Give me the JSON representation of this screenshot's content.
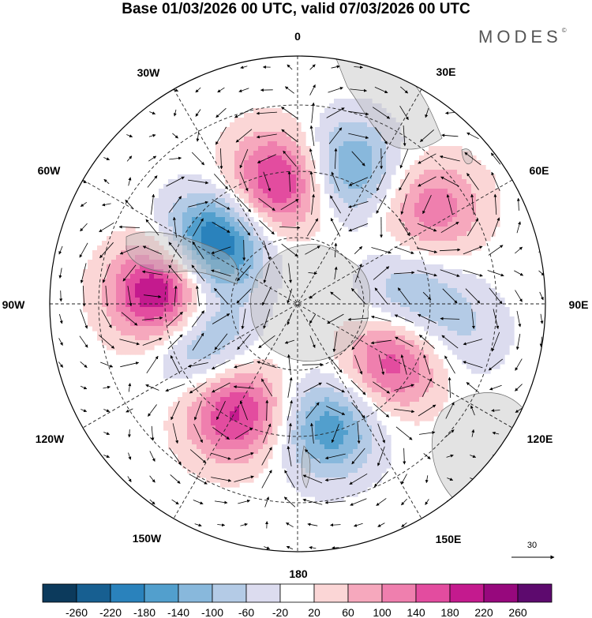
{
  "title": "Base 01/03/2026 00 UTC, valid 07/03/2026 00 UTC",
  "brand": "MODES",
  "brand_mark": "©",
  "longitude_labels": {
    "lon_0": "0",
    "lon_30e": "30E",
    "lon_60e": "60E",
    "lon_90e": "90E",
    "lon_120e": "120E",
    "lon_150e": "150E",
    "lon_180": "180",
    "lon_150w": "150W",
    "lon_120w": "120W",
    "lon_90w": "90W",
    "lon_60w": "60W",
    "lon_30w": "30W"
  },
  "vector_reference": {
    "value": "30"
  },
  "colorbar": {
    "colors": [
      "#0c3a5c",
      "#175f91",
      "#2a82bc",
      "#529fcd",
      "#88b8dc",
      "#b4cbe6",
      "#dcdcef",
      "#ffffff",
      "#fbd6d6",
      "#f6a8bd",
      "#ef7fae",
      "#e34c9f",
      "#c41a8e",
      "#97087d",
      "#5d0a6e"
    ],
    "labels": [
      "-260",
      "-220",
      "-180",
      "-140",
      "-100",
      "-60",
      "-20",
      "20",
      "60",
      "100",
      "140",
      "180",
      "220",
      "260"
    ]
  },
  "anomaly_field": {
    "units_note": "",
    "centers": [
      {
        "lon": -55,
        "colat": 25,
        "value": -250
      },
      {
        "lon": -8,
        "colat": 30,
        "value": 210
      },
      {
        "lon": 20,
        "colat": 35,
        "value": -160
      },
      {
        "lon": 55,
        "colat": 40,
        "value": 130
      },
      {
        "lon": -85,
        "colat": 33,
        "value": 260
      },
      {
        "lon": 88,
        "colat": 27,
        "value": -110
      },
      {
        "lon": -112,
        "colat": 25,
        "value": -140
      },
      {
        "lon": 120,
        "colat": 27,
        "value": 180
      },
      {
        "lon": -150,
        "colat": 30,
        "value": 200
      },
      {
        "lon": 166,
        "colat": 31,
        "value": -170
      },
      {
        "lon": 100,
        "colat": 40,
        "value": -60
      }
    ]
  }
}
